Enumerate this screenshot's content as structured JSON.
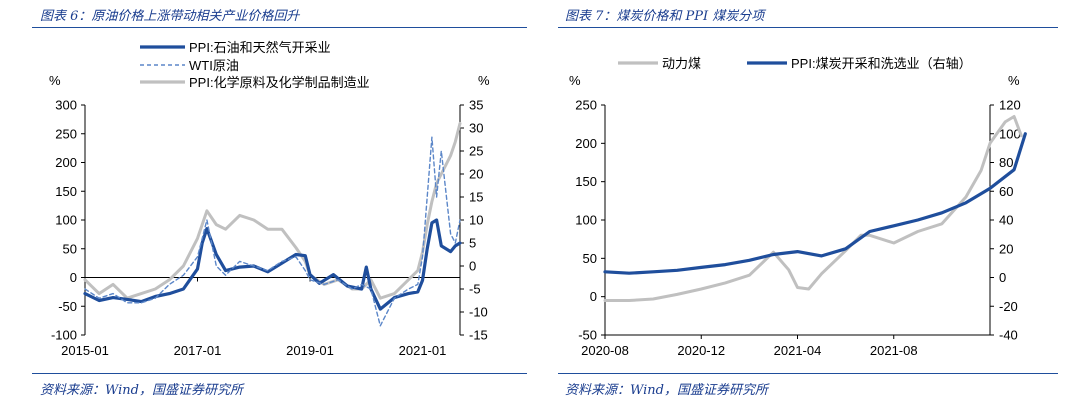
{
  "left": {
    "title": "图表 6：原油价格上涨带动相关产业价格回升",
    "source": "资料来源：Wind，国盛证券研究所",
    "left_unit": "%",
    "right_unit": "%",
    "chart_data": {
      "type": "line",
      "title": "",
      "x_ticks": [
        "2015-01",
        "2017-01",
        "2019-01",
        "2021-01"
      ],
      "x_range": [
        "2015-01",
        "2021-09"
      ],
      "ylim_left": [
        -100,
        300
      ],
      "yticks_left": [
        "300",
        "250",
        "200",
        "150",
        "100",
        "50",
        "0",
        "-50",
        "-100"
      ],
      "ylim_right": [
        -15,
        35
      ],
      "yticks_right": [
        "35",
        "30",
        "25",
        "20",
        "15",
        "10",
        "5",
        "0",
        "-5",
        "-10",
        "-15"
      ],
      "legend_position": "top",
      "series": [
        {
          "name": "PPI:石油和天然气开采业",
          "axis": "left",
          "color": "#1f4e9c",
          "style": "solid",
          "points": [
            [
              "2015-01",
              -28
            ],
            [
              "2015-04",
              -40
            ],
            [
              "2015-07",
              -35
            ],
            [
              "2015-10",
              -38
            ],
            [
              "2016-01",
              -42
            ],
            [
              "2016-04",
              -33
            ],
            [
              "2016-07",
              -28
            ],
            [
              "2016-10",
              -20
            ],
            [
              "2017-01",
              15
            ],
            [
              "2017-02",
              60
            ],
            [
              "2017-03",
              85
            ],
            [
              "2017-05",
              40
            ],
            [
              "2017-07",
              12
            ],
            [
              "2017-10",
              18
            ],
            [
              "2018-01",
              20
            ],
            [
              "2018-04",
              10
            ],
            [
              "2018-07",
              25
            ],
            [
              "2018-10",
              40
            ],
            [
              "2018-12",
              38
            ],
            [
              "2019-01",
              5
            ],
            [
              "2019-03",
              -10
            ],
            [
              "2019-06",
              5
            ],
            [
              "2019-09",
              -15
            ],
            [
              "2019-12",
              -20
            ],
            [
              "2020-01",
              18
            ],
            [
              "2020-02",
              -20
            ],
            [
              "2020-04",
              -55
            ],
            [
              "2020-07",
              -35
            ],
            [
              "2020-10",
              -28
            ],
            [
              "2020-12",
              -25
            ],
            [
              "2021-01",
              -5
            ],
            [
              "2021-02",
              50
            ],
            [
              "2021-03",
              95
            ],
            [
              "2021-04",
              100
            ],
            [
              "2021-05",
              55
            ],
            [
              "2021-07",
              45
            ],
            [
              "2021-08",
              55
            ],
            [
              "2021-09",
              60
            ]
          ]
        },
        {
          "name": "WTI原油",
          "axis": "right",
          "color": "#5b86c8",
          "style": "dashed",
          "points": [
            [
              "2015-01",
              -5
            ],
            [
              "2015-04",
              -7
            ],
            [
              "2015-07",
              -6
            ],
            [
              "2015-10",
              -8
            ],
            [
              "2016-01",
              -8
            ],
            [
              "2016-04",
              -7
            ],
            [
              "2016-07",
              -4
            ],
            [
              "2016-10",
              -2
            ],
            [
              "2017-01",
              2
            ],
            [
              "2017-03",
              10
            ],
            [
              "2017-05",
              0
            ],
            [
              "2017-07",
              -2
            ],
            [
              "2017-10",
              1
            ],
            [
              "2018-01",
              0
            ],
            [
              "2018-04",
              -1
            ],
            [
              "2018-07",
              1
            ],
            [
              "2018-10",
              2
            ],
            [
              "2018-12",
              -1
            ],
            [
              "2019-01",
              -3
            ],
            [
              "2019-04",
              -4
            ],
            [
              "2019-07",
              -3
            ],
            [
              "2019-10",
              -5
            ],
            [
              "2019-12",
              -4
            ],
            [
              "2020-02",
              -5
            ],
            [
              "2020-04",
              -13
            ],
            [
              "2020-07",
              -7
            ],
            [
              "2020-10",
              -5
            ],
            [
              "2020-12",
              -4
            ],
            [
              "2021-01",
              2
            ],
            [
              "2021-02",
              15
            ],
            [
              "2021-03",
              28
            ],
            [
              "2021-04",
              15
            ],
            [
              "2021-05",
              25
            ],
            [
              "2021-07",
              7
            ],
            [
              "2021-08",
              5
            ],
            [
              "2021-09",
              10
            ]
          ]
        },
        {
          "name": "PPI:化学原料及化学制品制造业",
          "axis": "right",
          "color": "#c0c0c0",
          "style": "solid",
          "points": [
            [
              "2015-01",
              -3
            ],
            [
              "2015-04",
              -6
            ],
            [
              "2015-07",
              -4
            ],
            [
              "2015-10",
              -7
            ],
            [
              "2016-01",
              -6
            ],
            [
              "2016-04",
              -5
            ],
            [
              "2016-07",
              -3
            ],
            [
              "2016-10",
              0
            ],
            [
              "2017-01",
              6
            ],
            [
              "2017-03",
              12
            ],
            [
              "2017-05",
              9
            ],
            [
              "2017-07",
              8
            ],
            [
              "2017-10",
              11
            ],
            [
              "2018-01",
              10
            ],
            [
              "2018-04",
              8
            ],
            [
              "2018-07",
              8
            ],
            [
              "2018-10",
              4
            ],
            [
              "2018-12",
              1
            ],
            [
              "2019-01",
              -2
            ],
            [
              "2019-04",
              -4
            ],
            [
              "2019-07",
              -3
            ],
            [
              "2019-10",
              -5
            ],
            [
              "2019-12",
              -5
            ],
            [
              "2020-02",
              -3
            ],
            [
              "2020-04",
              -7
            ],
            [
              "2020-07",
              -6
            ],
            [
              "2020-10",
              -3
            ],
            [
              "2020-12",
              -1
            ],
            [
              "2021-01",
              3
            ],
            [
              "2021-02",
              9
            ],
            [
              "2021-03",
              14
            ],
            [
              "2021-04",
              18
            ],
            [
              "2021-05",
              20
            ],
            [
              "2021-07",
              24
            ],
            [
              "2021-08",
              27
            ],
            [
              "2021-09",
              31
            ]
          ]
        }
      ]
    }
  },
  "right": {
    "title": "图表 7：煤炭价格和 PPI 煤炭分项",
    "source": "资料来源：Wind，国盛证券研究所",
    "left_unit": "%",
    "right_unit": "%",
    "chart_data": {
      "type": "line",
      "title": "",
      "x_ticks": [
        "2020-08",
        "2020-12",
        "2021-04",
        "2021-08"
      ],
      "x_range": [
        "2020-08",
        "2021-12"
      ],
      "ylim_left": [
        -50,
        250
      ],
      "yticks_left": [
        "250",
        "200",
        "150",
        "100",
        "50",
        "0",
        "-50"
      ],
      "ylim_right": [
        -40,
        120
      ],
      "yticks_right": [
        "120",
        "100",
        "80",
        "60",
        "40",
        "20",
        "0",
        "-20",
        "-40"
      ],
      "legend_position": "top",
      "series": [
        {
          "name": "动力煤",
          "axis": "left",
          "color": "#c0c0c0",
          "style": "solid",
          "points": [
            [
              "2020-08",
              -5
            ],
            [
              "2020-09",
              -5
            ],
            [
              "2020-10",
              -3
            ],
            [
              "2020-11",
              3
            ],
            [
              "2020-12",
              10
            ],
            [
              "2021-01",
              18
            ],
            [
              "2021-02",
              28
            ],
            [
              "2021-03",
              58
            ],
            [
              "2021-03-20",
              35
            ],
            [
              "2021-04",
              12
            ],
            [
              "2021-04-15",
              10
            ],
            [
              "2021-05",
              30
            ],
            [
              "2021-06",
              60
            ],
            [
              "2021-06-20",
              80
            ],
            [
              "2021-07",
              80
            ],
            [
              "2021-08",
              70
            ],
            [
              "2021-09",
              85
            ],
            [
              "2021-10",
              95
            ],
            [
              "2021-11",
              130
            ],
            [
              "2021-11-20",
              165
            ],
            [
              "2021-12",
              200
            ],
            [
              "2021-12-20",
              228
            ],
            [
              "2022-01",
              235
            ],
            [
              "2022-01-10",
              210
            ]
          ]
        },
        {
          "name": "PPI:煤炭开采和洗选业（右轴）",
          "axis": "right",
          "color": "#1f4e9c",
          "style": "solid",
          "points": [
            [
              "2020-08",
              4
            ],
            [
              "2020-09",
              3
            ],
            [
              "2020-10",
              4
            ],
            [
              "2020-11",
              5
            ],
            [
              "2020-12",
              7
            ],
            [
              "2021-01",
              9
            ],
            [
              "2021-02",
              12
            ],
            [
              "2021-03",
              16
            ],
            [
              "2021-04",
              18
            ],
            [
              "2021-05",
              15
            ],
            [
              "2021-06",
              20
            ],
            [
              "2021-07",
              32
            ],
            [
              "2021-08",
              36
            ],
            [
              "2021-09",
              40
            ],
            [
              "2021-10",
              45
            ],
            [
              "2021-11",
              52
            ],
            [
              "2021-12",
              62
            ],
            [
              "2022-01",
              75
            ],
            [
              "2022-01-15",
              100
            ]
          ]
        }
      ]
    }
  }
}
